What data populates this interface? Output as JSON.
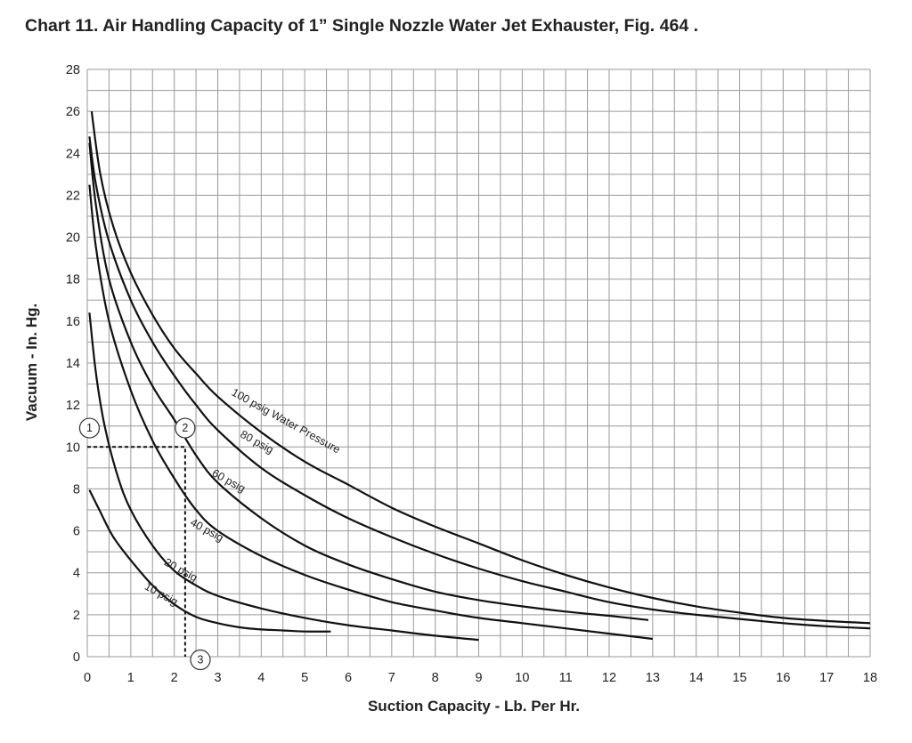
{
  "chart_data": {
    "type": "line",
    "title": "Chart 11.  Air Handling Capacity of 1” Single Nozzle Water Jet Exhauster, Fig. 464 .",
    "xlabel": "Suction Capacity - Lb. Per Hr.",
    "ylabel": "Vacuum - In. Hg.",
    "xlim": [
      0,
      18
    ],
    "ylim": [
      0,
      28
    ],
    "xticks": [
      0,
      1,
      2,
      3,
      4,
      5,
      6,
      7,
      8,
      9,
      10,
      11,
      12,
      13,
      14,
      15,
      16,
      17,
      18
    ],
    "yticks": [
      0,
      2,
      4,
      6,
      8,
      10,
      12,
      14,
      16,
      18,
      20,
      22,
      24,
      26,
      28
    ],
    "x_minor_step": 0.5,
    "y_minor_step": 1,
    "grid": true,
    "legend": "none",
    "series": [
      {
        "name": "100 psig Water Pressure",
        "label_at": [
          3.3,
          12.5
        ],
        "label_angle": 29,
        "points": [
          [
            0.1,
            26
          ],
          [
            0.3,
            23
          ],
          [
            0.6,
            20.5
          ],
          [
            1,
            18.3
          ],
          [
            1.5,
            16.3
          ],
          [
            2,
            14.7
          ],
          [
            2.5,
            13.5
          ],
          [
            3,
            12.4
          ],
          [
            4,
            10.7
          ],
          [
            5,
            9.3
          ],
          [
            6,
            8.2
          ],
          [
            7,
            7.1
          ],
          [
            8,
            6.2
          ],
          [
            9,
            5.4
          ],
          [
            10,
            4.6
          ],
          [
            11,
            3.9
          ],
          [
            12,
            3.3
          ],
          [
            13,
            2.8
          ],
          [
            14,
            2.4
          ],
          [
            15,
            2.1
          ],
          [
            16,
            1.85
          ],
          [
            17,
            1.7
          ],
          [
            18,
            1.6
          ]
        ]
      },
      {
        "name": "80 psig",
        "label_at": [
          3.5,
          10.5
        ],
        "label_angle": 29,
        "points": [
          [
            0.05,
            24.8
          ],
          [
            0.2,
            22.5
          ],
          [
            0.5,
            19.8
          ],
          [
            1,
            17
          ],
          [
            1.5,
            15
          ],
          [
            2,
            13.4
          ],
          [
            2.5,
            12
          ],
          [
            3,
            10.8
          ],
          [
            4,
            9
          ],
          [
            5,
            7.7
          ],
          [
            6,
            6.6
          ],
          [
            7,
            5.7
          ],
          [
            8,
            4.9
          ],
          [
            9,
            4.2
          ],
          [
            10,
            3.6
          ],
          [
            11,
            3.1
          ],
          [
            12,
            2.6
          ],
          [
            13,
            2.25
          ],
          [
            14,
            2
          ],
          [
            15,
            1.8
          ],
          [
            16,
            1.6
          ],
          [
            17,
            1.45
          ],
          [
            18,
            1.35
          ]
        ]
      },
      {
        "name": "60 psig",
        "label_at": [
          2.85,
          8.65
        ],
        "label_angle": 29,
        "points": [
          [
            0.05,
            24.5
          ],
          [
            0.2,
            21.5
          ],
          [
            0.5,
            18
          ],
          [
            1,
            15
          ],
          [
            1.5,
            12.9
          ],
          [
            2,
            11.3
          ],
          [
            2.5,
            9.6
          ],
          [
            3,
            8.3
          ],
          [
            4,
            6.6
          ],
          [
            5,
            5.3
          ],
          [
            6,
            4.4
          ],
          [
            7,
            3.7
          ],
          [
            8,
            3.1
          ],
          [
            9,
            2.7
          ],
          [
            10,
            2.4
          ],
          [
            11,
            2.15
          ],
          [
            12,
            1.95
          ],
          [
            12.9,
            1.75
          ]
        ]
      },
      {
        "name": "40 psig",
        "label_at": [
          2.35,
          6.3
        ],
        "label_angle": 29,
        "points": [
          [
            0.05,
            22.5
          ],
          [
            0.2,
            19.5
          ],
          [
            0.5,
            16
          ],
          [
            1,
            12.7
          ],
          [
            1.5,
            10.3
          ],
          [
            2,
            8.5
          ],
          [
            2.5,
            7
          ],
          [
            3,
            6
          ],
          [
            4,
            4.8
          ],
          [
            5,
            3.9
          ],
          [
            6,
            3.2
          ],
          [
            7,
            2.6
          ],
          [
            8,
            2.2
          ],
          [
            9,
            1.85
          ],
          [
            10,
            1.6
          ],
          [
            11,
            1.35
          ],
          [
            12,
            1.1
          ],
          [
            13,
            0.85
          ]
        ]
      },
      {
        "name": "20 psig",
        "label_at": [
          1.75,
          4.4
        ],
        "label_angle": 29,
        "points": [
          [
            0.05,
            16.4
          ],
          [
            0.2,
            13.5
          ],
          [
            0.4,
            11
          ],
          [
            0.7,
            8.6
          ],
          [
            1,
            7
          ],
          [
            1.5,
            5.3
          ],
          [
            2,
            4.1
          ],
          [
            2.5,
            3.4
          ],
          [
            3,
            2.9
          ],
          [
            4,
            2.3
          ],
          [
            5,
            1.85
          ],
          [
            6,
            1.5
          ],
          [
            7,
            1.25
          ],
          [
            8,
            1
          ],
          [
            9,
            0.8
          ]
        ]
      },
      {
        "name": "10 psig",
        "label_at": [
          1.3,
          3.25
        ],
        "label_angle": 29,
        "points": [
          [
            0.05,
            7.95
          ],
          [
            0.3,
            6.9
          ],
          [
            0.6,
            5.7
          ],
          [
            1,
            4.6
          ],
          [
            1.5,
            3.4
          ],
          [
            2,
            2.5
          ],
          [
            2.5,
            1.9
          ],
          [
            3,
            1.6
          ],
          [
            3.5,
            1.4
          ],
          [
            4,
            1.3
          ],
          [
            4.5,
            1.25
          ],
          [
            5,
            1.2
          ],
          [
            5.6,
            1.2
          ]
        ]
      }
    ],
    "annotations": {
      "markers": [
        {
          "label": "1",
          "x": 0.05,
          "y": 10.9
        },
        {
          "label": "2",
          "x": 2.25,
          "y": 10.9
        },
        {
          "label": "3",
          "x": 2.6,
          "y": -0.15
        }
      ],
      "dashed_path": [
        [
          0,
          10
        ],
        [
          2.25,
          10
        ],
        [
          2.25,
          0
        ]
      ]
    }
  }
}
